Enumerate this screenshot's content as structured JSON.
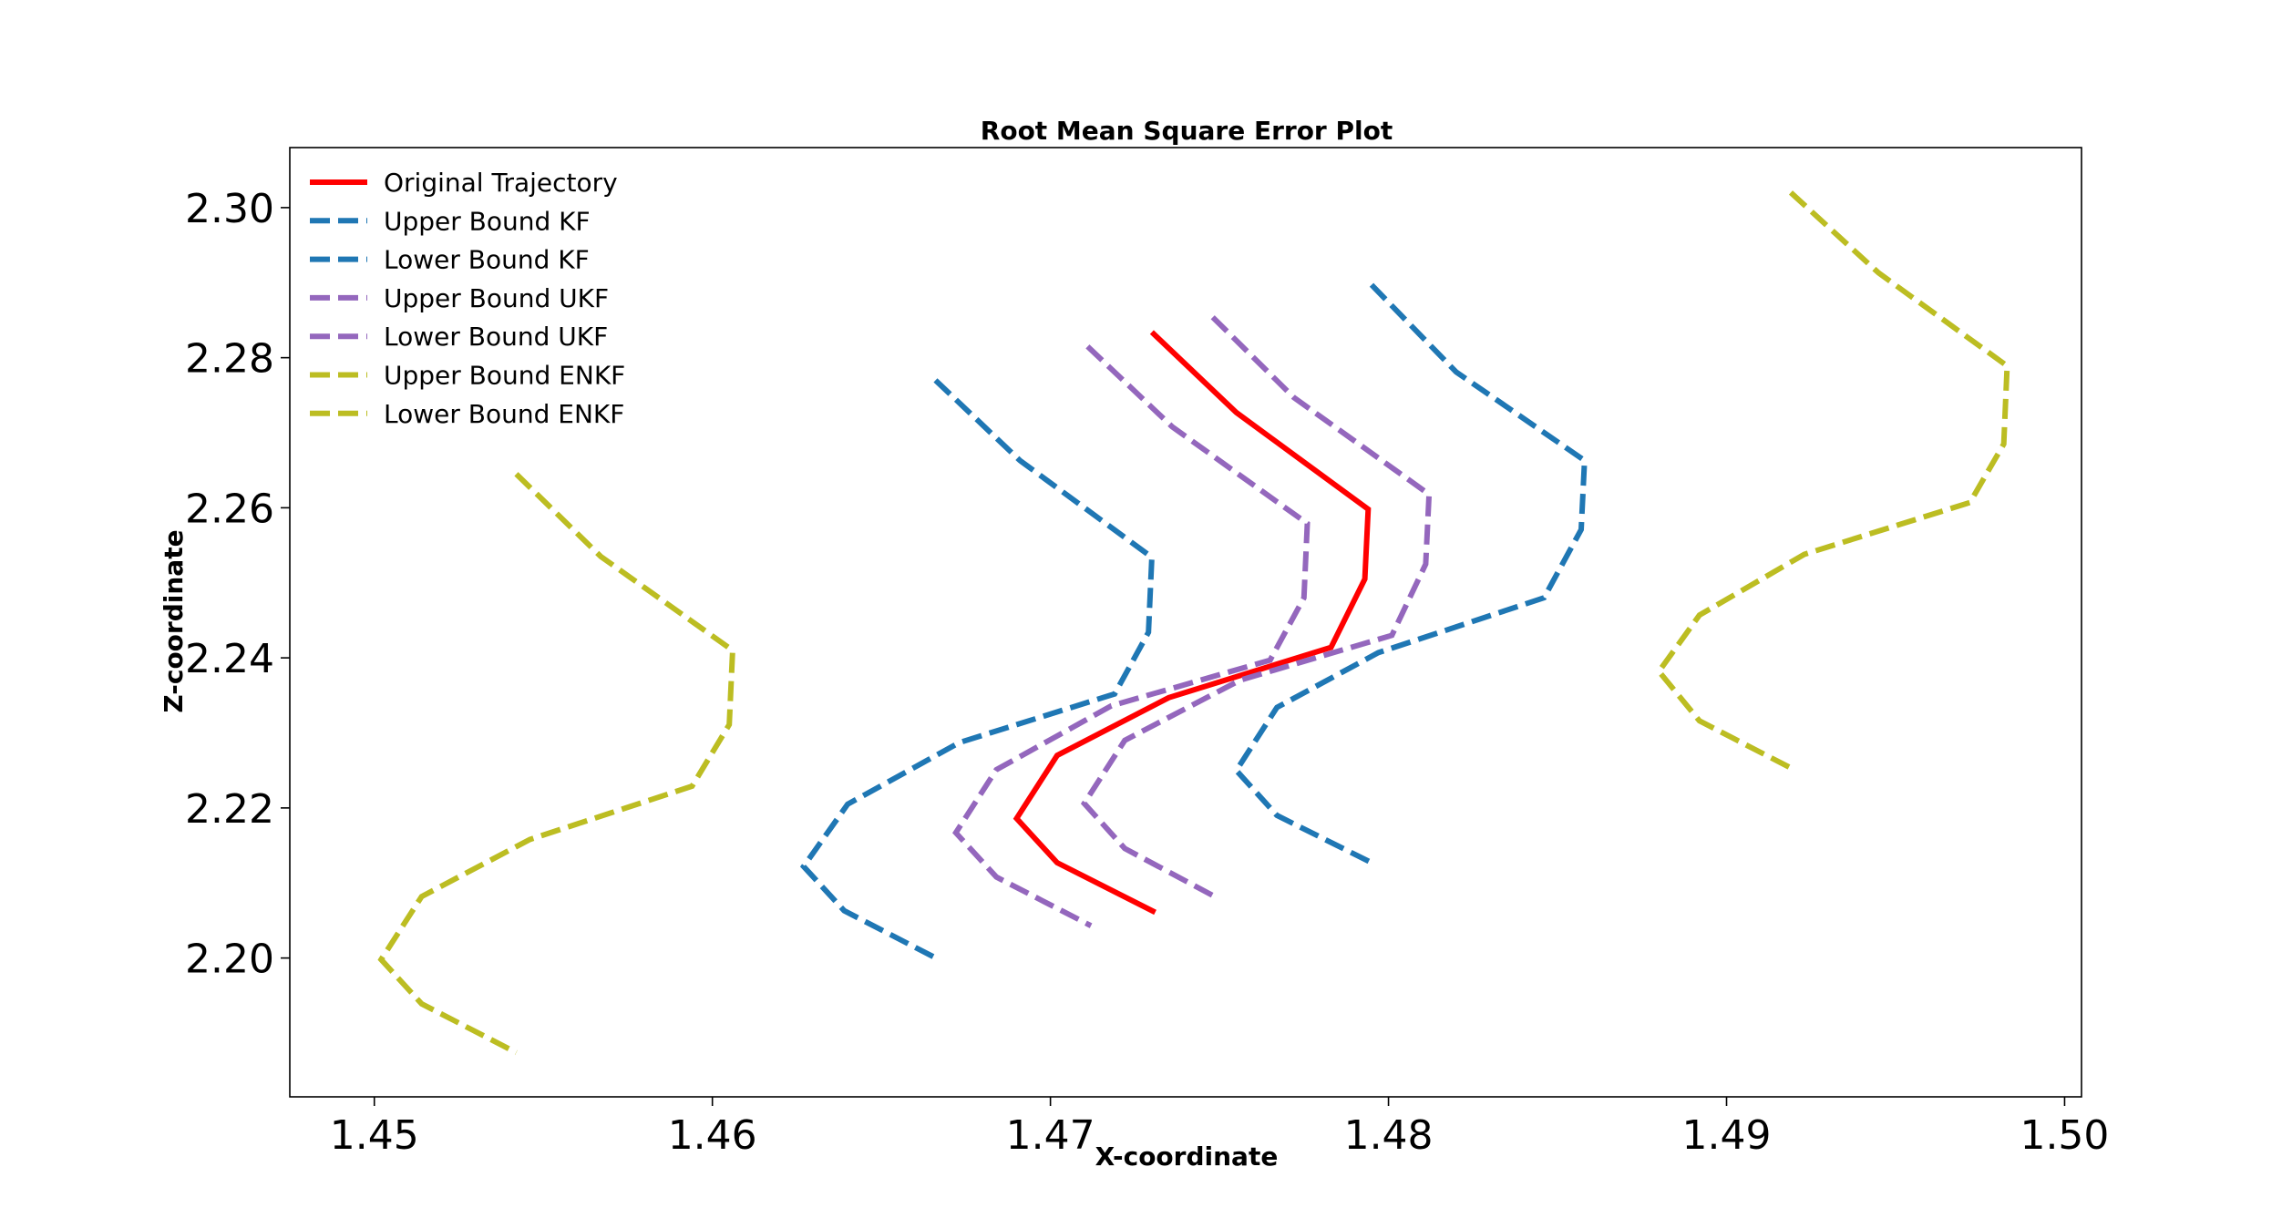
{
  "chart_data": {
    "type": "line",
    "title": "Root Mean Square Error Plot",
    "xlabel": "X-coordinate",
    "ylabel": "Z-coordinate",
    "xlim": [
      1.4475,
      1.5005
    ],
    "ylim": [
      2.1815,
      2.308
    ],
    "xticks": [
      1.45,
      1.46,
      1.47,
      1.48,
      1.49,
      1.5
    ],
    "xtick_labels": [
      "1.45",
      "1.46",
      "1.47",
      "1.48",
      "1.49",
      "1.50"
    ],
    "yticks": [
      2.2,
      2.22,
      2.24,
      2.26,
      2.28,
      2.3
    ],
    "ytick_labels": [
      "2.20",
      "2.22",
      "2.24",
      "2.26",
      "2.28",
      "2.30"
    ],
    "grid": false,
    "legend_placement": "upper-left",
    "series": [
      {
        "name": "Original Trajectory",
        "color": "#ff0000",
        "style": "solid",
        "points": [
          [
            1.473,
            2.2834
          ],
          [
            1.4755,
            2.2727
          ],
          [
            1.4794,
            2.2598
          ],
          [
            1.4793,
            2.2505
          ],
          [
            1.4783,
            2.2414
          ],
          [
            1.4735,
            2.2347
          ],
          [
            1.4702,
            2.227
          ],
          [
            1.469,
            2.2186
          ],
          [
            1.4702,
            2.2127
          ],
          [
            1.4731,
            2.2061
          ]
        ]
      },
      {
        "name": "Upper Bound KF",
        "color": "#1f77b4",
        "style": "dashed",
        "points": [
          [
            1.4795,
            2.2897
          ],
          [
            1.482,
            2.2781
          ],
          [
            1.4858,
            2.2663
          ],
          [
            1.4857,
            2.2571
          ],
          [
            1.4846,
            2.248
          ],
          [
            1.4797,
            2.2407
          ],
          [
            1.4767,
            2.2334
          ],
          [
            1.4755,
            2.225
          ],
          [
            1.4767,
            2.219
          ],
          [
            1.4795,
            2.2127
          ]
        ]
      },
      {
        "name": "Lower Bound KF",
        "color": "#1f77b4",
        "style": "dashed",
        "points": [
          [
            1.4666,
            2.277
          ],
          [
            1.4691,
            2.2663
          ],
          [
            1.473,
            2.2534
          ],
          [
            1.4729,
            2.2434
          ],
          [
            1.4719,
            2.2352
          ],
          [
            1.4673,
            2.2287
          ],
          [
            1.464,
            2.2205
          ],
          [
            1.4627,
            2.2122
          ],
          [
            1.4639,
            2.2063
          ],
          [
            1.4667,
            2.1998
          ]
        ]
      },
      {
        "name": "Upper Bound UKF",
        "color": "#9467bd",
        "style": "dashed",
        "points": [
          [
            1.4748,
            2.2854
          ],
          [
            1.4772,
            2.2747
          ],
          [
            1.4812,
            2.2618
          ],
          [
            1.4811,
            2.2525
          ],
          [
            1.4801,
            2.243
          ],
          [
            1.4756,
            2.237
          ],
          [
            1.4722,
            2.229
          ],
          [
            1.471,
            2.2206
          ],
          [
            1.4722,
            2.2146
          ],
          [
            1.4749,
            2.2081
          ]
        ]
      },
      {
        "name": "Lower Bound UKF",
        "color": "#9467bd",
        "style": "dashed",
        "points": [
          [
            1.4711,
            2.2815
          ],
          [
            1.4736,
            2.2708
          ],
          [
            1.4776,
            2.2579
          ],
          [
            1.4775,
            2.248
          ],
          [
            1.4765,
            2.2397
          ],
          [
            1.4718,
            2.2336
          ],
          [
            1.4684,
            2.2251
          ],
          [
            1.4672,
            2.2167
          ],
          [
            1.4684,
            2.2108
          ],
          [
            1.4712,
            2.2043
          ]
        ]
      },
      {
        "name": "Upper Bound ENKF",
        "color": "#bcbd22",
        "style": "dashed",
        "points": [
          [
            1.4919,
            2.302
          ],
          [
            1.4945,
            2.2913
          ],
          [
            1.4983,
            2.2789
          ],
          [
            1.4982,
            2.2685
          ],
          [
            1.4972,
            2.2607
          ],
          [
            1.4923,
            2.2538
          ],
          [
            1.4892,
            2.2457
          ],
          [
            1.488,
            2.2382
          ],
          [
            1.4892,
            2.2316
          ],
          [
            1.492,
            2.2251
          ]
        ]
      },
      {
        "name": "Lower Bound ENKF",
        "color": "#bcbd22",
        "style": "dashed",
        "points": [
          [
            1.4542,
            2.2645
          ],
          [
            1.4567,
            2.2535
          ],
          [
            1.4606,
            2.241
          ],
          [
            1.4605,
            2.2311
          ],
          [
            1.4594,
            2.2229
          ],
          [
            1.4546,
            2.2158
          ],
          [
            1.4514,
            2.2082
          ],
          [
            1.4502,
            2.1998
          ],
          [
            1.4514,
            2.1939
          ],
          [
            1.4542,
            2.1874
          ]
        ]
      }
    ]
  }
}
